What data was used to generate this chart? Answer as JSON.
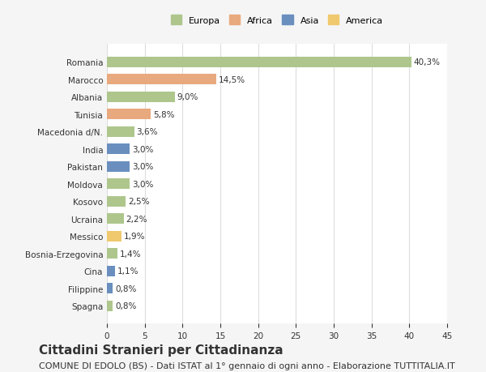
{
  "countries": [
    "Romania",
    "Marocco",
    "Albania",
    "Tunisia",
    "Macedonia d/N.",
    "India",
    "Pakistan",
    "Moldova",
    "Kosovo",
    "Ucraina",
    "Messico",
    "Bosnia-Erzegovina",
    "Cina",
    "Filippine",
    "Spagna"
  ],
  "values": [
    40.3,
    14.5,
    9.0,
    5.8,
    3.6,
    3.0,
    3.0,
    3.0,
    2.5,
    2.2,
    1.9,
    1.4,
    1.1,
    0.8,
    0.8
  ],
  "labels": [
    "40,3%",
    "14,5%",
    "9,0%",
    "5,8%",
    "3,6%",
    "3,0%",
    "3,0%",
    "3,0%",
    "2,5%",
    "2,2%",
    "1,9%",
    "1,4%",
    "1,1%",
    "0,8%",
    "0,8%"
  ],
  "continents": [
    "Europa",
    "Africa",
    "Europa",
    "Africa",
    "Europa",
    "Asia",
    "Asia",
    "Europa",
    "Europa",
    "Europa",
    "America",
    "Europa",
    "Asia",
    "Asia",
    "Europa"
  ],
  "continent_colors": {
    "Europa": "#aec68c",
    "Africa": "#e9a97e",
    "Asia": "#6a8fbf",
    "America": "#f0c96e"
  },
  "legend_order": [
    "Europa",
    "Africa",
    "Asia",
    "America"
  ],
  "xlim": [
    0,
    45
  ],
  "xticks": [
    0,
    5,
    10,
    15,
    20,
    25,
    30,
    35,
    40,
    45
  ],
  "title": "Cittadini Stranieri per Cittadinanza",
  "subtitle": "COMUNE DI EDOLO (BS) - Dati ISTAT al 1° gennaio di ogni anno - Elaborazione TUTTITALIA.IT",
  "background_color": "#f5f5f5",
  "bar_background": "#ffffff",
  "grid_color": "#dddddd",
  "text_color": "#333333",
  "title_fontsize": 11,
  "subtitle_fontsize": 8,
  "label_fontsize": 7.5,
  "tick_fontsize": 7.5
}
